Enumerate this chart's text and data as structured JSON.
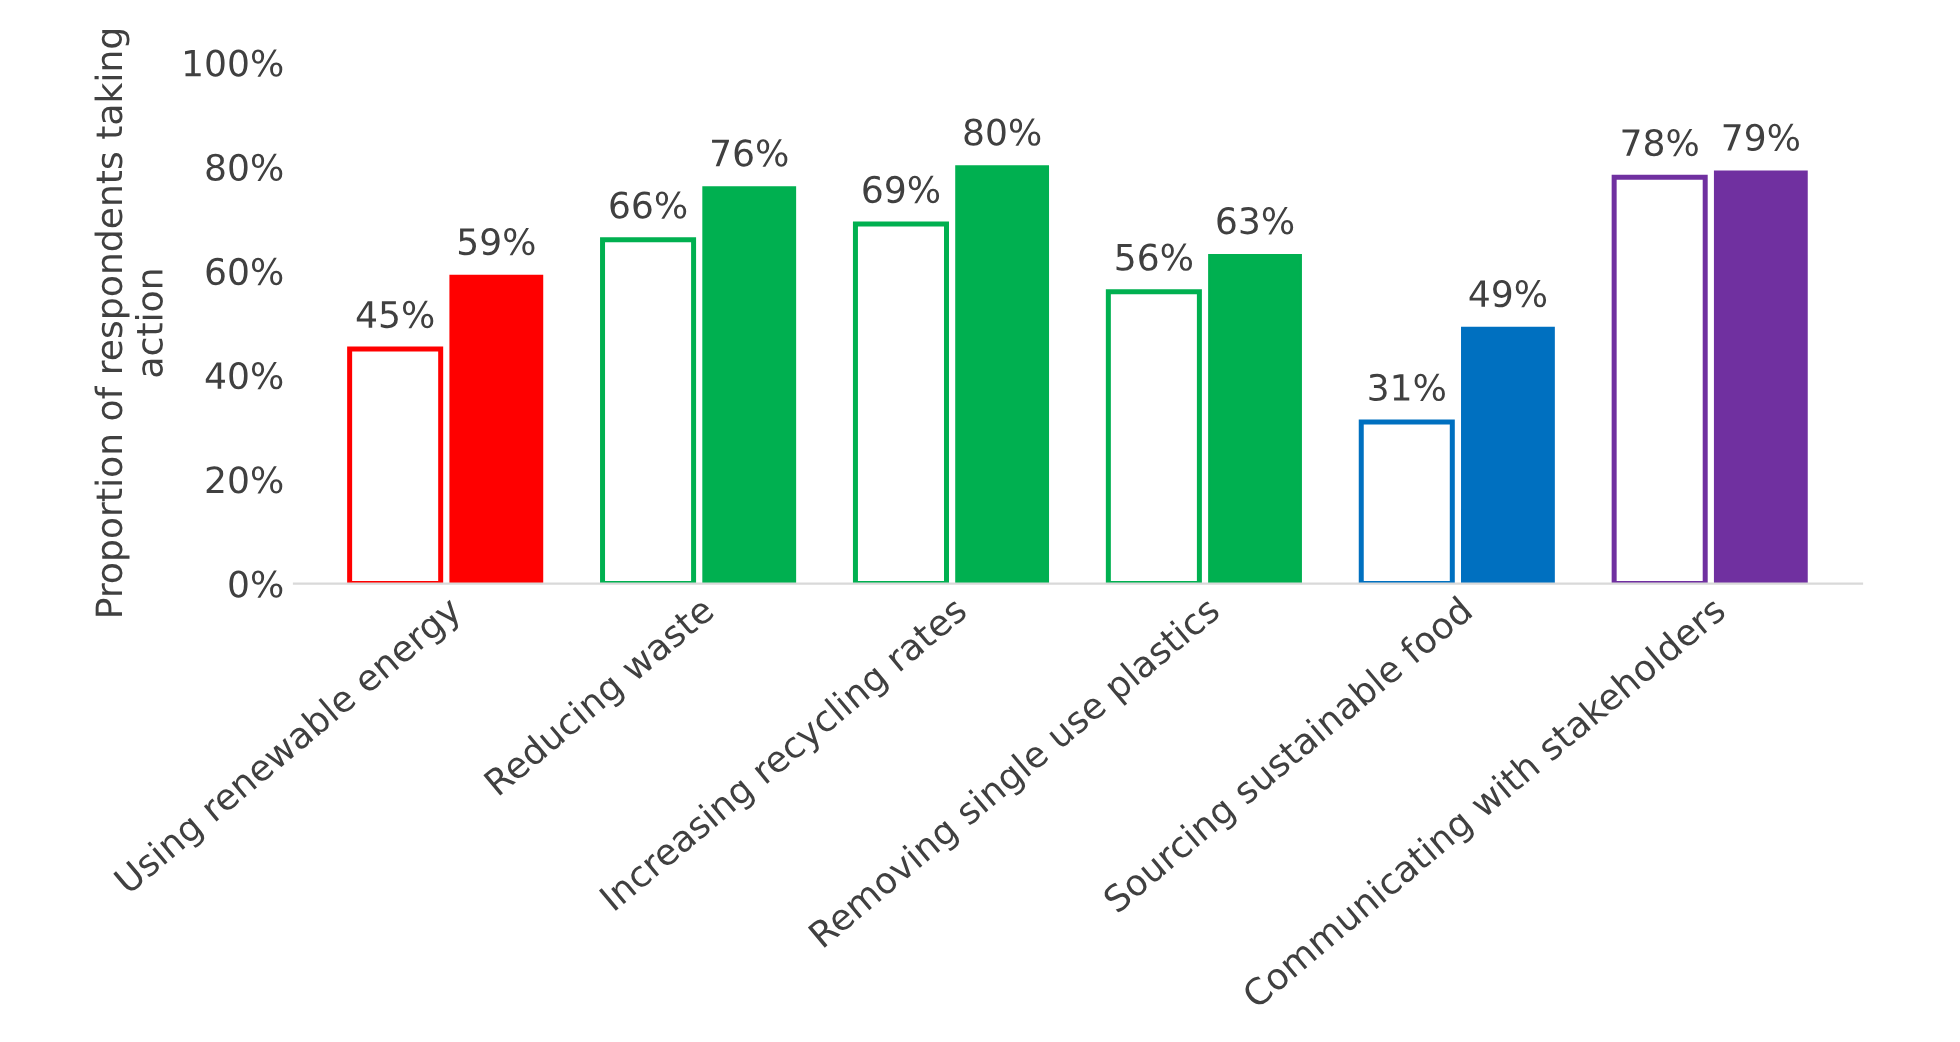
{
  "chart_data": {
    "type": "bar",
    "ylabel": "Proportion of respondents taking action",
    "categories": [
      "Using renewable energy",
      "Reducing waste",
      "Increasing recycling rates",
      "Removing single use plastics",
      "Sourcing sustainable food",
      "Communicating with stakeholders"
    ],
    "series": [
      {
        "colors": [
          "#ff0000",
          "#00b050",
          "#00b050",
          "#00b050",
          "#0070c0",
          "#7030a0"
        ],
        "values": [
          45,
          66,
          69,
          56,
          31,
          78
        ],
        "value_labels": [
          "45%",
          "66%",
          "69%",
          "56%",
          "31%",
          "78%"
        ]
      },
      {
        "colors": [
          "#ff0000",
          "#00b050",
          "#00b050",
          "#00b050",
          "#0070c0",
          "#7030a0"
        ],
        "values": [
          59,
          76,
          80,
          63,
          49,
          79
        ],
        "value_labels": [
          "59%",
          "76%",
          "80%",
          "63%",
          "49%",
          "79%"
        ]
      }
    ],
    "ylim": [
      0,
      100
    ],
    "yticks": [
      {
        "value": 0,
        "label": "0%"
      },
      {
        "value": 20,
        "label": "20%"
      },
      {
        "value": 40,
        "label": "40%"
      },
      {
        "value": 60,
        "label": "60%"
      },
      {
        "value": 80,
        "label": "80%"
      },
      {
        "value": 100,
        "label": "100%"
      }
    ],
    "grid": false
  }
}
